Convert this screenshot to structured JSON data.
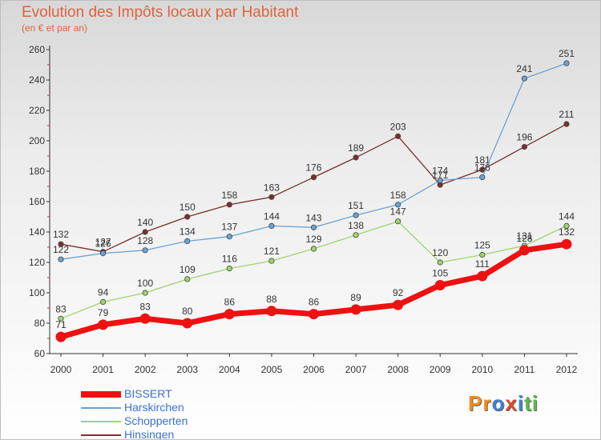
{
  "header": {
    "title": "Evolution des Impôts locaux par Habitant",
    "subtitle": "(en € et par an)"
  },
  "logo": {
    "text": "Proxiti",
    "letters": [
      "P",
      "r",
      "o",
      "x",
      "i",
      "t",
      "i"
    ],
    "colors": [
      "#f28c1c",
      "#f28c1c",
      "#3b82d6",
      "#e2472e",
      "#3b82d6",
      "#5bb94a",
      "#5bb94a"
    ]
  },
  "chart_data": {
    "type": "line",
    "title": "Evolution des Impôts locaux par Habitant",
    "subtitle": "(en € et par an)",
    "x": [
      2000,
      2001,
      2002,
      2003,
      2004,
      2005,
      2006,
      2007,
      2008,
      2009,
      2010,
      2011,
      2012
    ],
    "ylim": [
      60,
      260
    ],
    "yticks": [
      60,
      80,
      100,
      120,
      140,
      160,
      180,
      200,
      220,
      240,
      260
    ],
    "grid": false,
    "legend_position": "bottom-left",
    "series": [
      {
        "name": "BISSERT",
        "color": "#ee1111",
        "values": [
          71,
          79,
          83,
          80,
          86,
          88,
          86,
          89,
          92,
          105,
          111,
          128,
          132
        ]
      },
      {
        "name": "Harskirchen",
        "color": "#6aa3d5",
        "values": [
          122,
          126,
          128,
          134,
          137,
          144,
          143,
          151,
          158,
          174,
          176,
          241,
          251
        ]
      },
      {
        "name": "Schopperten",
        "color": "#9bd66a",
        "values": [
          83,
          94,
          100,
          109,
          116,
          121,
          129,
          138,
          147,
          120,
          125,
          131,
          144
        ]
      },
      {
        "name": "Hinsingen",
        "color": "#7a2f2f",
        "values": [
          132,
          127,
          140,
          150,
          158,
          163,
          176,
          189,
          203,
          171,
          181,
          196,
          211
        ]
      }
    ]
  }
}
